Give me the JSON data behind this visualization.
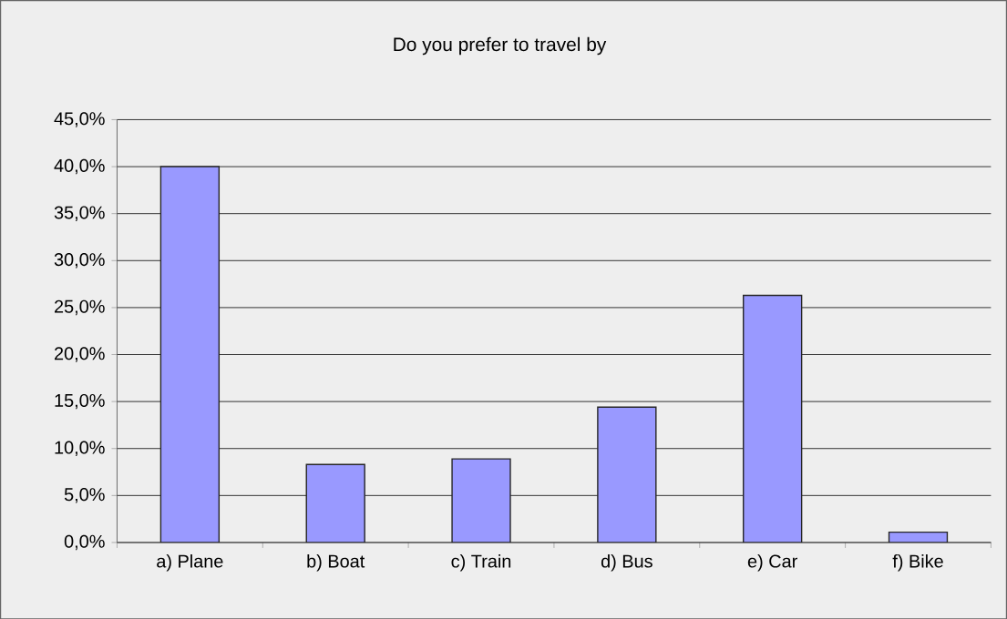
{
  "chart_data": {
    "type": "bar",
    "title": "Do you prefer to travel by",
    "categories": [
      "a) Plane",
      "b) Boat",
      "c) Train",
      "d) Bus",
      "e) Car",
      "f) Bike"
    ],
    "values": [
      40.0,
      8.3,
      8.9,
      14.4,
      26.3,
      1.1
    ],
    "color": "#9999ff",
    "ylim": [
      0,
      45
    ],
    "yticks": [
      {
        "value": 0,
        "label": "0,0%"
      },
      {
        "value": 5,
        "label": "5,0%"
      },
      {
        "value": 10,
        "label": "10,0%"
      },
      {
        "value": 15,
        "label": "15,0%"
      },
      {
        "value": 20,
        "label": "20,0%"
      },
      {
        "value": 25,
        "label": "25,0%"
      },
      {
        "value": 30,
        "label": "30,0%"
      },
      {
        "value": 35,
        "label": "35,0%"
      },
      {
        "value": 40,
        "label": "40,0%"
      },
      {
        "value": 45,
        "label": "45,0%"
      }
    ],
    "grid": "y"
  }
}
